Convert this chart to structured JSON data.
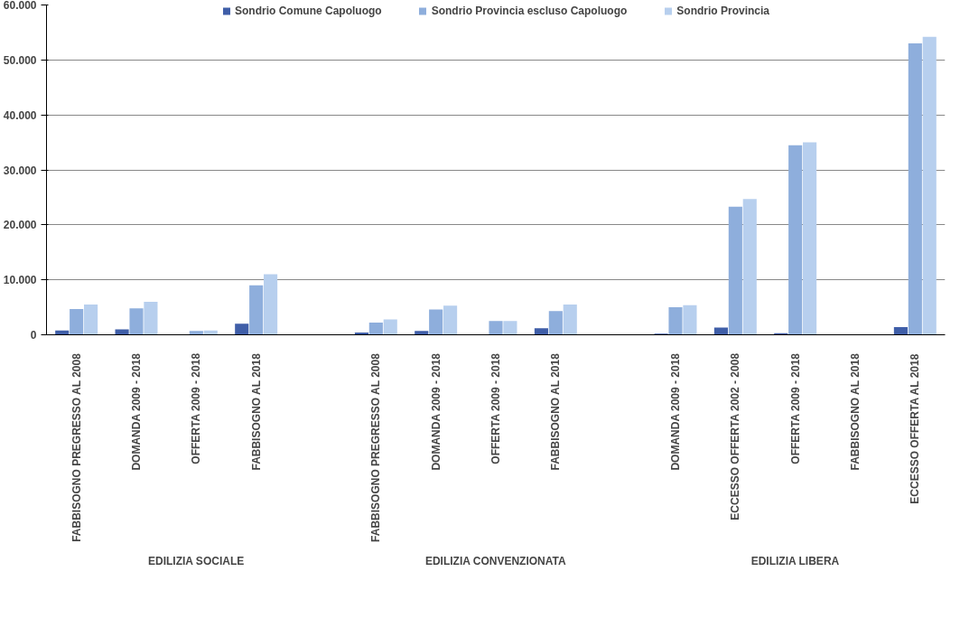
{
  "chart_data": {
    "type": "bar",
    "categories": [
      "FABBISOGNO PREGRESSO AL 2008",
      "DOMANDA 2009 - 2018",
      "OFFERTA 2009 - 2018",
      "FABBISOGNO AL 2018",
      null,
      "FABBISOGNO PREGRESSO AL 2008",
      "DOMANDA 2009 - 2018",
      "OFFERTA 2009 - 2018",
      "FABBISOGNO AL 2018",
      null,
      "DOMANDA 2009 - 2018",
      "ECCESSO OFFERTA 2002 - 2008",
      "OFFERTA 2009 - 2018",
      "FABBISOGNO AL 2018",
      "ECCESSO OFFERTA AL 2018"
    ],
    "series": [
      {
        "name": "Sondrio Comune Capoluogo",
        "color": "#3f5ea8",
        "values": [
          800,
          1000,
          null,
          2000,
          null,
          400,
          700,
          0,
          1200,
          null,
          200,
          1300,
          300,
          0,
          1400
        ]
      },
      {
        "name": "Sondrio Provincia escluso Capoluogo",
        "color": "#8eaedc",
        "values": [
          4700,
          4800,
          700,
          9000,
          null,
          2200,
          4600,
          2500,
          4300,
          null,
          5000,
          23300,
          34500,
          0,
          53000
        ]
      },
      {
        "name": "Sondrio Provincia",
        "color": "#b7cfee",
        "values": [
          5500,
          6000,
          800,
          11000,
          null,
          2800,
          5300,
          2500,
          5500,
          null,
          5400,
          24700,
          35000,
          0,
          54200
        ]
      }
    ],
    "ylim": [
      0,
      60000
    ],
    "yticks": [
      0,
      {
        "value": 10000,
        "label": "10.000"
      },
      {
        "value": 20000,
        "label": "20.000"
      },
      {
        "value": 30000,
        "label": "30.000"
      },
      {
        "value": 40000,
        "label": "40.000"
      },
      {
        "value": 50000,
        "label": "50.000"
      },
      {
        "value": 60000,
        "label": "60.000"
      }
    ],
    "grid": "y",
    "legend": "top",
    "annotations": [
      "EDILIZIA SOCIALE",
      "EDILIZIA CONVENZIONATA",
      "EDILIZIA LIBERA"
    ]
  }
}
